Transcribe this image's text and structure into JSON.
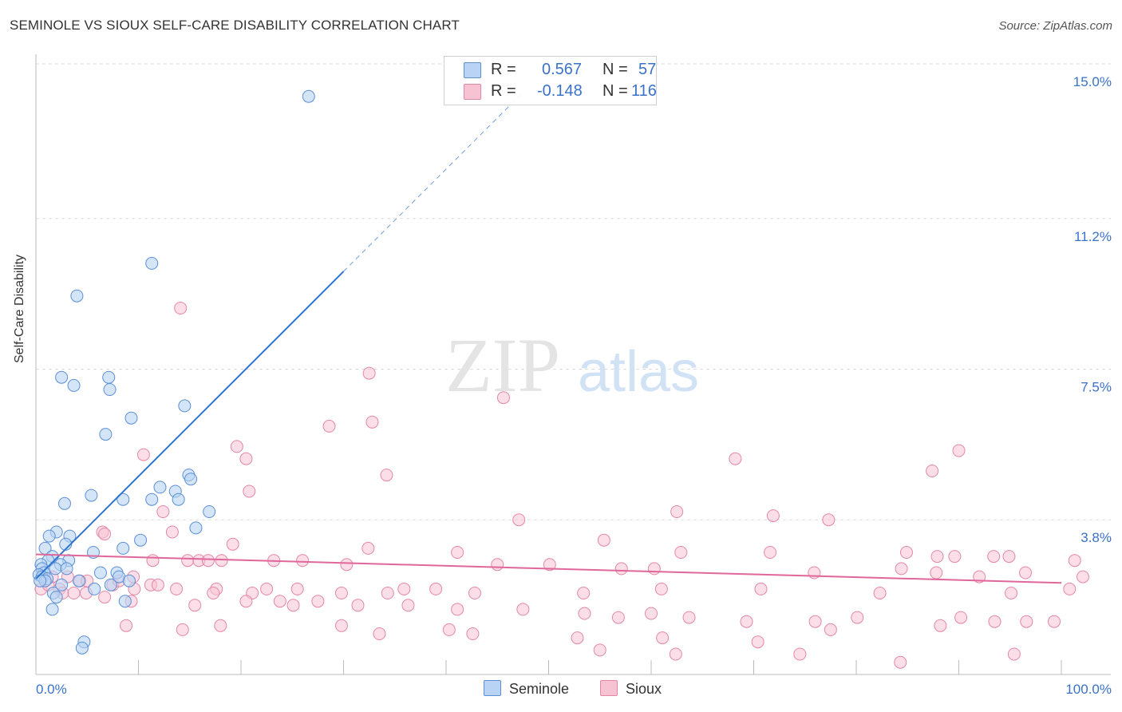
{
  "title": "SEMINOLE VS SIOUX SELF-CARE DISABILITY CORRELATION CHART",
  "source": "Source: ZipAtlas.com",
  "watermark": {
    "zip": "ZIP",
    "atlas": "atlas"
  },
  "legend": {
    "rows": [
      {
        "r_label": "R =",
        "r_value": "0.567",
        "n_label": "N =",
        "n_value": "57"
      },
      {
        "r_label": "R =",
        "r_value": "-0.148",
        "n_label": "N =",
        "n_value": "116"
      }
    ]
  },
  "bottom_legend": {
    "seminole": "Seminole",
    "sioux": "Sioux"
  },
  "colors": {
    "seminole_fill": "#b8d3f3",
    "seminole_stroke": "#5b8fd6",
    "seminole_line": "#2f74d0",
    "sioux_fill": "#f7c3d3",
    "sioux_stroke": "#e487a6",
    "sioux_line": "#e0679a",
    "grid": "#dddddd",
    "axis_text": "#3a72c8"
  },
  "chart_data": {
    "type": "scatter",
    "title": "SEMINOLE VS SIOUX SELF-CARE DISABILITY CORRELATION CHART",
    "xlabel": "",
    "ylabel": "Self-Care Disability",
    "xlim": [
      0,
      100
    ],
    "ylim": [
      0,
      15.0
    ],
    "x_tick_labels": [
      "0.0%",
      "100.0%"
    ],
    "y_ticks": [
      3.8,
      7.5,
      11.2,
      15.0
    ],
    "y_tick_labels": [
      "3.8%",
      "7.5%",
      "11.2%",
      "15.0%"
    ],
    "series": [
      {
        "name": "Seminole",
        "R": 0.567,
        "N": 57,
        "trend": {
          "x": [
            0,
            30
          ],
          "y": [
            2.35,
            9.9
          ],
          "dashed_extension_to": [
            47.5,
            14.3
          ]
        },
        "points": [
          [
            26.6,
            14.2
          ],
          [
            11.3,
            10.1
          ],
          [
            4.0,
            9.3
          ],
          [
            2.5,
            7.3
          ],
          [
            3.7,
            7.1
          ],
          [
            7.1,
            7.3
          ],
          [
            7.2,
            7.0
          ],
          [
            9.3,
            6.3
          ],
          [
            6.8,
            5.9
          ],
          [
            14.5,
            6.6
          ],
          [
            14.9,
            4.9
          ],
          [
            15.1,
            4.8
          ],
          [
            12.1,
            4.6
          ],
          [
            13.6,
            4.5
          ],
          [
            13.9,
            4.3
          ],
          [
            11.3,
            4.3
          ],
          [
            8.5,
            4.3
          ],
          [
            5.4,
            4.4
          ],
          [
            2.8,
            4.2
          ],
          [
            16.9,
            4.0
          ],
          [
            15.6,
            3.6
          ],
          [
            2.0,
            3.5
          ],
          [
            3.3,
            3.4
          ],
          [
            1.3,
            3.4
          ],
          [
            10.2,
            3.3
          ],
          [
            2.9,
            3.2
          ],
          [
            8.5,
            3.1
          ],
          [
            5.6,
            3.0
          ],
          [
            0.9,
            3.1
          ],
          [
            1.6,
            2.9
          ],
          [
            1.2,
            2.8
          ],
          [
            3.2,
            2.8
          ],
          [
            0.5,
            2.7
          ],
          [
            2.4,
            2.7
          ],
          [
            0.6,
            2.6
          ],
          [
            6.3,
            2.5
          ],
          [
            1.9,
            2.6
          ],
          [
            3.0,
            2.6
          ],
          [
            0.8,
            2.5
          ],
          [
            7.9,
            2.5
          ],
          [
            0.3,
            2.45
          ],
          [
            0.6,
            2.4
          ],
          [
            8.1,
            2.4
          ],
          [
            9.1,
            2.3
          ],
          [
            1.1,
            2.35
          ],
          [
            4.2,
            2.3
          ],
          [
            0.9,
            2.3
          ],
          [
            7.3,
            2.2
          ],
          [
            2.5,
            2.2
          ],
          [
            5.7,
            2.1
          ],
          [
            0.4,
            2.3
          ],
          [
            1.7,
            2.0
          ],
          [
            2.0,
            1.9
          ],
          [
            8.7,
            1.8
          ],
          [
            1.6,
            1.6
          ],
          [
            4.7,
            0.8
          ],
          [
            4.5,
            0.65
          ]
        ]
      },
      {
        "name": "Sioux",
        "R": -0.148,
        "N": 116,
        "trend": {
          "x": [
            0,
            100
          ],
          "y": [
            2.95,
            2.25
          ]
        },
        "points": [
          [
            14.1,
            9.0
          ],
          [
            32.5,
            7.4
          ],
          [
            45.6,
            6.8
          ],
          [
            32.8,
            6.2
          ],
          [
            28.6,
            6.1
          ],
          [
            19.6,
            5.6
          ],
          [
            10.5,
            5.4
          ],
          [
            20.5,
            5.3
          ],
          [
            68.2,
            5.3
          ],
          [
            90.0,
            5.5
          ],
          [
            87.4,
            5.0
          ],
          [
            34.2,
            4.9
          ],
          [
            20.8,
            4.5
          ],
          [
            12.4,
            4.0
          ],
          [
            62.5,
            4.0
          ],
          [
            71.9,
            3.9
          ],
          [
            47.1,
            3.8
          ],
          [
            77.3,
            3.8
          ],
          [
            13.3,
            3.5
          ],
          [
            6.5,
            3.5
          ],
          [
            6.7,
            3.45
          ],
          [
            55.4,
            3.3
          ],
          [
            19.2,
            3.2
          ],
          [
            32.4,
            3.1
          ],
          [
            41.1,
            3.0
          ],
          [
            62.9,
            3.0
          ],
          [
            71.6,
            3.0
          ],
          [
            84.9,
            3.0
          ],
          [
            89.6,
            2.9
          ],
          [
            87.9,
            2.9
          ],
          [
            93.4,
            2.9
          ],
          [
            94.9,
            2.9
          ],
          [
            101.3,
            2.8
          ],
          [
            11.4,
            2.8
          ],
          [
            14.8,
            2.8
          ],
          [
            15.9,
            2.8
          ],
          [
            16.8,
            2.8
          ],
          [
            18.1,
            2.8
          ],
          [
            23.2,
            2.8
          ],
          [
            26.0,
            2.8
          ],
          [
            30.3,
            2.7
          ],
          [
            45.0,
            2.7
          ],
          [
            50.1,
            2.7
          ],
          [
            57.1,
            2.6
          ],
          [
            60.3,
            2.6
          ],
          [
            75.9,
            2.5
          ],
          [
            84.4,
            2.6
          ],
          [
            87.8,
            2.5
          ],
          [
            92.0,
            2.4
          ],
          [
            96.5,
            2.5
          ],
          [
            102.1,
            2.4
          ],
          [
            1.6,
            2.4
          ],
          [
            3.1,
            2.4
          ],
          [
            4.3,
            2.3
          ],
          [
            5.0,
            2.3
          ],
          [
            7.5,
            2.2
          ],
          [
            8.1,
            2.3
          ],
          [
            9.5,
            2.4
          ],
          [
            11.2,
            2.2
          ],
          [
            11.9,
            2.2
          ],
          [
            13.7,
            2.1
          ],
          [
            17.6,
            2.1
          ],
          [
            21.1,
            2.0
          ],
          [
            22.5,
            2.1
          ],
          [
            25.5,
            2.1
          ],
          [
            29.8,
            2.0
          ],
          [
            34.3,
            2.0
          ],
          [
            35.9,
            2.1
          ],
          [
            39.0,
            2.1
          ],
          [
            42.8,
            2.0
          ],
          [
            53.4,
            2.0
          ],
          [
            61.0,
            2.1
          ],
          [
            70.7,
            2.1
          ],
          [
            82.3,
            2.0
          ],
          [
            95.1,
            2.0
          ],
          [
            100.8,
            2.1
          ],
          [
            0.5,
            2.1
          ],
          [
            1.2,
            2.2
          ],
          [
            2.3,
            2.1
          ],
          [
            9.6,
            2.1
          ],
          [
            17.3,
            2.0
          ],
          [
            2.6,
            2.0
          ],
          [
            3.7,
            2.0
          ],
          [
            4.9,
            2.0
          ],
          [
            6.7,
            1.9
          ],
          [
            9.3,
            1.8
          ],
          [
            15.5,
            1.7
          ],
          [
            20.5,
            1.8
          ],
          [
            23.8,
            1.8
          ],
          [
            25.1,
            1.7
          ],
          [
            27.5,
            1.8
          ],
          [
            31.4,
            1.7
          ],
          [
            36.3,
            1.7
          ],
          [
            41.1,
            1.6
          ],
          [
            47.5,
            1.6
          ],
          [
            53.5,
            1.5
          ],
          [
            56.8,
            1.4
          ],
          [
            60.0,
            1.5
          ],
          [
            63.7,
            1.4
          ],
          [
            69.3,
            1.3
          ],
          [
            76.0,
            1.3
          ],
          [
            80.1,
            1.4
          ],
          [
            90.2,
            1.4
          ],
          [
            93.5,
            1.3
          ],
          [
            96.6,
            1.3
          ],
          [
            99.3,
            1.3
          ],
          [
            88.2,
            1.2
          ],
          [
            77.5,
            1.1
          ],
          [
            8.8,
            1.2
          ],
          [
            14.3,
            1.1
          ],
          [
            18.0,
            1.2
          ],
          [
            29.8,
            1.2
          ],
          [
            33.5,
            1.0
          ],
          [
            40.3,
            1.1
          ],
          [
            42.6,
            1.0
          ],
          [
            52.8,
            0.9
          ],
          [
            61.1,
            0.9
          ],
          [
            70.4,
            0.8
          ],
          [
            55.0,
            0.6
          ],
          [
            62.4,
            0.5
          ],
          [
            74.5,
            0.5
          ],
          [
            84.3,
            0.3
          ],
          [
            95.4,
            0.5
          ]
        ]
      }
    ]
  }
}
